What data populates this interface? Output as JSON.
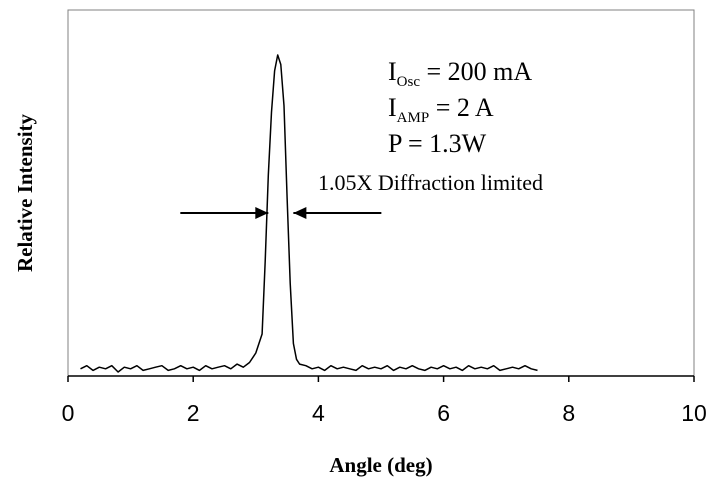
{
  "chart_data": {
    "type": "line",
    "title": "",
    "xlabel": "Angle (deg)",
    "ylabel": "Relative Intensity",
    "xlim": [
      0,
      10
    ],
    "ylim": [
      0,
      1
    ],
    "x_ticks": [
      "0",
      "2",
      "4",
      "6",
      "8",
      "10"
    ],
    "y_ticks": [],
    "grid": false,
    "series": [
      {
        "x": [
          0.2,
          0.3,
          0.4,
          0.5,
          0.6,
          0.7,
          0.8,
          0.9,
          1.0,
          1.1,
          1.2,
          1.3,
          1.4,
          1.5,
          1.6,
          1.7,
          1.8,
          1.9,
          2.0,
          2.1,
          2.2,
          2.3,
          2.4,
          2.5,
          2.6,
          2.7,
          2.8,
          2.9,
          3.0,
          3.1,
          3.15,
          3.2,
          3.25,
          3.3,
          3.35,
          3.4,
          3.45,
          3.5,
          3.55,
          3.6,
          3.65,
          3.7,
          3.8,
          3.9,
          4.0,
          4.1,
          4.2,
          4.3,
          4.4,
          4.5,
          4.6,
          4.7,
          4.8,
          4.9,
          5.0,
          5.1,
          5.2,
          5.3,
          5.4,
          5.5,
          5.6,
          5.7,
          5.8,
          5.9,
          6.0,
          6.1,
          6.2,
          6.3,
          6.4,
          6.5,
          6.6,
          6.7,
          6.8,
          6.9,
          7.0,
          7.1,
          7.2,
          7.3,
          7.4,
          7.5
        ],
        "values": [
          0.01,
          0.02,
          0.005,
          0.015,
          0.01,
          0.02,
          0.0,
          0.015,
          0.01,
          0.02,
          0.005,
          0.01,
          0.015,
          0.02,
          0.005,
          0.01,
          0.02,
          0.01,
          0.015,
          0.005,
          0.02,
          0.01,
          0.015,
          0.02,
          0.01,
          0.025,
          0.015,
          0.03,
          0.06,
          0.12,
          0.35,
          0.62,
          0.82,
          0.95,
          1.0,
          0.97,
          0.84,
          0.55,
          0.28,
          0.09,
          0.04,
          0.025,
          0.02,
          0.01,
          0.015,
          0.005,
          0.02,
          0.01,
          0.015,
          0.01,
          0.005,
          0.02,
          0.01,
          0.015,
          0.01,
          0.02,
          0.005,
          0.015,
          0.01,
          0.02,
          0.01,
          0.005,
          0.015,
          0.01,
          0.02,
          0.01,
          0.015,
          0.005,
          0.02,
          0.01,
          0.015,
          0.01,
          0.02,
          0.005,
          0.01,
          0.015,
          0.01,
          0.02,
          0.01,
          0.005
        ]
      }
    ],
    "annotations": {
      "fwhm_label": "1.05X Diffraction limited",
      "fwhm_arrow_left_x": 3.2,
      "fwhm_arrow_right_x": 3.6,
      "fwhm_arrow_level": 0.5
    },
    "legend_block": {
      "line1_prefix": "I",
      "line1_sub": "Osc",
      "line1_suffix": " = 200 mA",
      "line2_prefix": "I",
      "line2_sub": "AMP",
      "line2_suffix": " = 2 A",
      "line3": "P = 1.3W"
    }
  }
}
